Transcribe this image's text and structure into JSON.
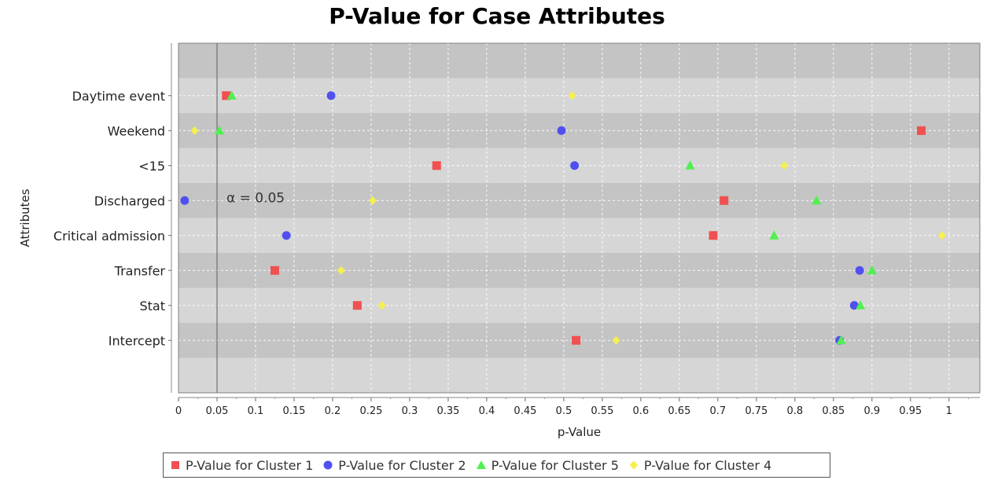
{
  "chart_data": {
    "type": "scatter",
    "title": "P-Value for Case Attributes",
    "xlabel": "p-Value",
    "ylabel": "Attributes",
    "xlim": [
      0,
      1.04
    ],
    "x_ticks": [
      "0",
      "0.05",
      "0.1",
      "0.15",
      "0.2",
      "0.25",
      "0.3",
      "0.35",
      "0.4",
      "0.45",
      "0.5",
      "0.55",
      "0.6",
      "0.65",
      "0.7",
      "0.75",
      "0.8",
      "0.85",
      "0.9",
      "0.95",
      "1"
    ],
    "categories": [
      "Daytime event",
      "Weekend",
      "<15",
      "Discharged",
      "Critical admission",
      "Transfer",
      "Stat",
      "Intercept"
    ],
    "grid": true,
    "legend_position": "bottom",
    "annotations": [
      {
        "label": "α = 0.05",
        "x": 0.05
      }
    ],
    "series": [
      {
        "name": "P-Value for Cluster 1",
        "marker": "square",
        "color": "#f05050",
        "values": [
          0.062,
          0.964,
          0.335,
          0.708,
          0.694,
          0.125,
          0.232,
          0.516
        ]
      },
      {
        "name": "P-Value for Cluster 2",
        "marker": "circle",
        "color": "#5050f0",
        "values": [
          0.198,
          0.497,
          0.514,
          0.008,
          0.14,
          0.884,
          0.877,
          0.858
        ]
      },
      {
        "name": "P-Value for Cluster 5",
        "marker": "triangle",
        "color": "#50f050",
        "values": [
          0.069,
          0.053,
          0.664,
          0.828,
          0.773,
          0.9,
          0.885,
          0.86
        ]
      },
      {
        "name": "P-Value for Cluster 4",
        "marker": "diamond",
        "color": "#f5f050",
        "values": [
          0.511,
          0.021,
          0.786,
          0.252,
          0.991,
          0.211,
          0.264,
          0.568
        ]
      }
    ]
  }
}
